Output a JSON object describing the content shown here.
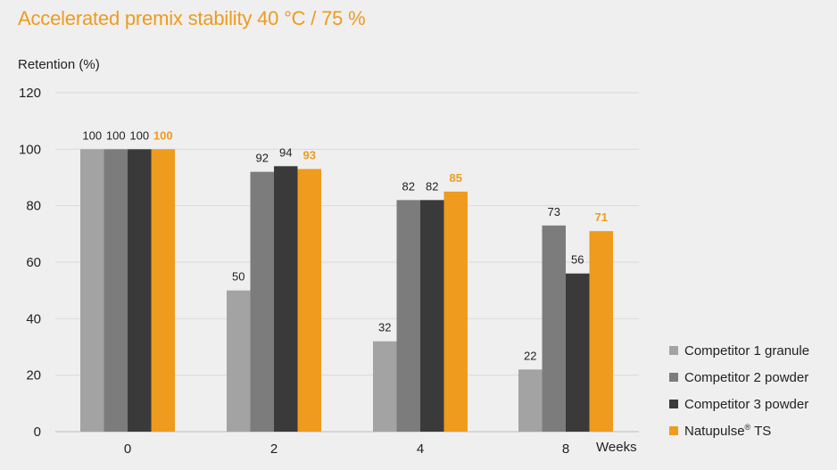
{
  "title": "Accelerated premix stability 40 °C / 75 %",
  "chart_data": {
    "type": "bar",
    "title": "Accelerated premix stability 40 °C / 75 %",
    "ylabel": "Retention (%)",
    "xlabel": "Weeks",
    "categories": [
      "0",
      "2",
      "4",
      "8"
    ],
    "ylim": [
      0,
      120
    ],
    "yticks": [
      "0",
      "20",
      "40",
      "60",
      "80",
      "100",
      "120"
    ],
    "grid": true,
    "legend_position": "bottom-right",
    "series": [
      {
        "name": "Competitor 1 granule",
        "values": [
          100,
          50,
          32,
          22
        ],
        "color": "#a3a3a3"
      },
      {
        "name": "Competitor 2 powder",
        "values": [
          100,
          92,
          82,
          73
        ],
        "color": "#7c7c7c"
      },
      {
        "name": "Competitor 3 powder",
        "values": [
          100,
          94,
          82,
          56
        ],
        "color": "#3a3a3a"
      },
      {
        "name": "Natupulse",
        "name_sup": "®",
        "name_suffix": " TS",
        "values": [
          100,
          93,
          85,
          71
        ],
        "color": "#ee9b1e",
        "highlight": true
      }
    ]
  }
}
